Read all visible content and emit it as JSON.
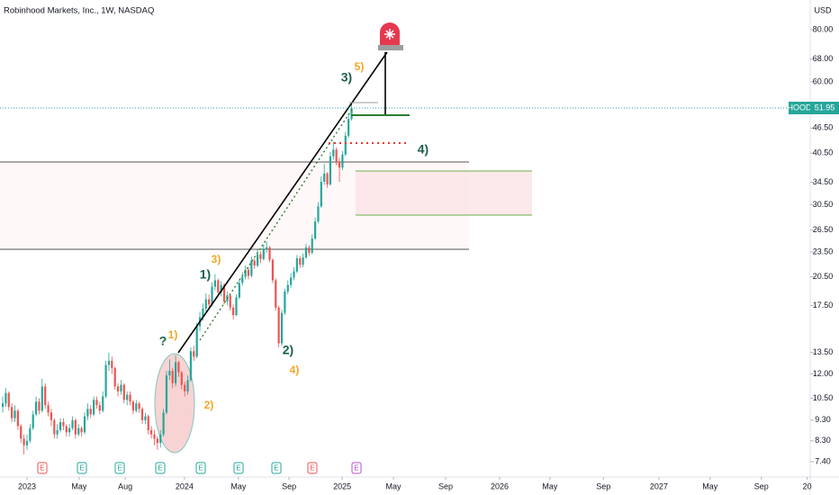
{
  "chart_data": {
    "type": "candlestick",
    "title": "Robinhood Markets, Inc., 1W, NASDAQ",
    "currency": "USD",
    "ticker": "HOOD",
    "last_price": 51.95,
    "log_scale": true,
    "grid": false,
    "up_color": "#26a69a",
    "down_color": "#ef5350",
    "xlim": [
      -0.9,
      266.2
    ],
    "xticks": [
      {
        "value": 8,
        "label": "2023"
      },
      {
        "value": 25.2,
        "label": "May"
      },
      {
        "value": 40.4,
        "label": "Aug"
      },
      {
        "value": 59.9,
        "label": "2024"
      },
      {
        "value": 77.7,
        "label": "May"
      },
      {
        "value": 94.4,
        "label": "Sep"
      },
      {
        "value": 111.9,
        "label": "2025"
      },
      {
        "value": 128.8,
        "label": "May"
      },
      {
        "value": 146,
        "label": "Sep"
      },
      {
        "value": 163.8,
        "label": "2026"
      },
      {
        "value": 180.4,
        "label": "May"
      },
      {
        "value": 198,
        "label": "Sep"
      },
      {
        "value": 216.3,
        "label": "2027"
      },
      {
        "value": 233.2,
        "label": "May"
      },
      {
        "value": 250.1,
        "label": "Sep"
      },
      {
        "value": 265.2,
        "label": "20"
      }
    ],
    "ylim": [
      6.8,
      94.2
    ],
    "yticks": [
      {
        "value": 80,
        "label": "80.00"
      },
      {
        "value": 68,
        "label": "68.00"
      },
      {
        "value": 60,
        "label": "60.00"
      },
      {
        "value": 46.5,
        "label": "46.50"
      },
      {
        "value": 40.5,
        "label": "40.50"
      },
      {
        "value": 34.5,
        "label": "34.50"
      },
      {
        "value": 30.5,
        "label": "30.50"
      },
      {
        "value": 26.5,
        "label": "26.50"
      },
      {
        "value": 23.5,
        "label": "23.50"
      },
      {
        "value": 20.5,
        "label": "20.50"
      },
      {
        "value": 17.5,
        "label": "17.50"
      },
      {
        "value": 13.5,
        "label": "13.50"
      },
      {
        "value": 12,
        "label": "12.00"
      },
      {
        "value": 10.5,
        "label": "10.50"
      },
      {
        "value": 9.3,
        "label": "9.30"
      },
      {
        "value": 8.3,
        "label": "8.30"
      },
      {
        "value": 7.4,
        "label": "7.40"
      }
    ],
    "open": [
      10.0,
      10.2,
      10.8,
      10.0,
      9.4,
      9.8,
      9.0,
      8.4,
      8.1,
      8.3,
      8.9,
      9.6,
      10.3,
      9.8,
      11.2,
      10.1,
      9.7,
      9.3,
      8.6,
      8.8,
      9.2,
      9.0,
      8.7,
      8.9,
      9.3,
      8.6,
      8.9,
      8.7,
      9.5,
      9.9,
      9.6,
      10.4,
      10.1,
      9.8,
      10.6,
      12.6,
      12.9,
      12.4,
      11.2,
      10.9,
      11.3,
      10.4,
      10.7,
      10.3,
      9.8,
      10.2,
      9.9,
      9.3,
      9.5,
      8.8,
      8.6,
      8.4,
      8.2,
      8.6,
      9.7,
      11.9,
      12.2,
      11.4,
      12.8,
      12.1,
      11.3,
      10.9,
      11.6,
      13.6,
      13.2,
      15.6,
      16.4,
      17.2,
      18.1,
      17.6,
      19.4,
      20.1,
      18.8,
      19.6,
      17.9,
      18.5,
      17.3,
      16.6,
      18.3,
      19.8,
      20.5,
      21.3,
      20.6,
      22.4,
      21.8,
      23.2,
      22.6,
      23.8,
      24.1,
      22.5,
      20.1,
      17.3,
      14.2,
      16.8,
      18.9,
      19.6,
      20.4,
      21.1,
      22.7,
      21.9,
      22.8,
      24.1,
      23.4,
      25.3,
      27.8,
      30.2,
      34.6,
      36.2,
      34.1,
      39.8,
      41.3,
      38.7,
      37.4,
      40.2,
      44.6,
      48.9
    ],
    "high": [
      10.6,
      11.1,
      10.9,
      10.2,
      10.1,
      9.9,
      9.1,
      8.6,
      8.6,
      9.1,
      9.8,
      10.6,
      10.5,
      11.7,
      11.4,
      10.3,
      9.9,
      9.4,
      9.1,
      9.4,
      9.4,
      9.1,
      9.1,
      9.5,
      9.4,
      9.1,
      9.0,
      9.7,
      10.2,
      10.1,
      10.6,
      10.6,
      10.3,
      10.9,
      12.9,
      13.5,
      13.2,
      12.5,
      11.4,
      11.6,
      11.4,
      10.9,
      10.9,
      10.4,
      10.4,
      10.3,
      10.0,
      9.7,
      9.6,
      9.0,
      8.8,
      8.5,
      8.8,
      9.9,
      12.2,
      13.0,
      12.4,
      13.3,
      12.9,
      12.2,
      11.5,
      11.9,
      13.9,
      14.0,
      15.9,
      16.9,
      17.7,
      18.7,
      18.6,
      19.9,
      20.8,
      20.3,
      20.0,
      19.8,
      18.9,
      18.7,
      17.6,
      18.6,
      20.2,
      21.0,
      21.8,
      21.6,
      22.9,
      22.7,
      23.8,
      23.6,
      24.5,
      24.9,
      24.3,
      22.7,
      20.3,
      17.5,
      17.1,
      19.2,
      20.1,
      20.9,
      21.6,
      23.1,
      23.0,
      23.3,
      24.6,
      24.4,
      25.9,
      28.4,
      30.9,
      35.6,
      38.2,
      36.5,
      40.8,
      43.2,
      41.8,
      39.5,
      41.0,
      45.5,
      50.1,
      53.2
    ],
    "low": [
      9.7,
      10.0,
      9.8,
      9.2,
      9.2,
      8.8,
      8.2,
      7.7,
      7.9,
      8.2,
      8.8,
      9.5,
      9.6,
      9.7,
      9.9,
      9.5,
      9.0,
      8.4,
      8.4,
      8.7,
      8.8,
      8.5,
      8.5,
      8.8,
      8.4,
      8.5,
      8.5,
      8.6,
      9.3,
      9.4,
      9.5,
      9.9,
      9.6,
      9.7,
      10.5,
      12.2,
      12.0,
      11.0,
      10.6,
      10.7,
      10.2,
      10.1,
      10.1,
      9.6,
      9.7,
      9.7,
      9.1,
      9.1,
      8.6,
      8.4,
      8.1,
      7.9,
      8.0,
      8.5,
      9.6,
      11.6,
      11.1,
      11.2,
      11.8,
      11.0,
      10.6,
      10.7,
      11.5,
      12.9,
      13.1,
      15.2,
      16.1,
      16.9,
      17.2,
      17.4,
      19.0,
      18.5,
      18.4,
      17.6,
      17.5,
      17.0,
      16.2,
      16.5,
      18.1,
      19.5,
      20.2,
      20.2,
      20.4,
      21.4,
      21.6,
      22.1,
      22.4,
      23.4,
      22.2,
      19.8,
      17.0,
      13.9,
      14.0,
      16.6,
      18.6,
      19.3,
      20.1,
      20.9,
      21.5,
      21.6,
      22.6,
      23.0,
      23.2,
      25.1,
      27.5,
      30.0,
      34.0,
      33.5,
      33.9,
      39.1,
      37.9,
      34.6,
      36.9,
      39.8,
      44.0,
      48.5
    ],
    "close": [
      10.2,
      10.8,
      10.0,
      9.4,
      9.8,
      9.0,
      8.4,
      8.1,
      8.3,
      8.9,
      9.6,
      10.3,
      9.8,
      11.2,
      10.1,
      9.7,
      9.3,
      8.6,
      8.8,
      9.2,
      9.0,
      8.7,
      8.9,
      9.3,
      8.6,
      8.9,
      8.7,
      9.5,
      9.9,
      9.6,
      10.4,
      10.1,
      9.8,
      10.6,
      12.6,
      12.9,
      12.4,
      11.2,
      10.9,
      11.3,
      10.4,
      10.7,
      10.3,
      9.8,
      10.2,
      9.9,
      9.3,
      9.5,
      8.8,
      8.6,
      8.4,
      8.2,
      8.6,
      9.7,
      11.9,
      12.2,
      11.4,
      12.8,
      12.1,
      11.3,
      10.9,
      11.6,
      13.6,
      13.2,
      15.6,
      16.4,
      17.2,
      18.1,
      17.6,
      19.4,
      20.1,
      18.8,
      19.6,
      17.9,
      18.5,
      17.3,
      16.6,
      18.3,
      19.8,
      20.5,
      21.3,
      20.6,
      22.4,
      21.8,
      23.2,
      22.6,
      23.8,
      24.1,
      22.5,
      20.1,
      17.3,
      14.2,
      16.8,
      18.9,
      19.6,
      20.4,
      21.1,
      22.7,
      21.9,
      22.8,
      24.1,
      23.4,
      25.3,
      27.8,
      30.2,
      34.6,
      36.2,
      34.1,
      39.8,
      41.3,
      38.7,
      37.4,
      40.2,
      44.6,
      48.9,
      51.95
    ],
    "annotations": [
      {
        "text": "?",
        "color": "#1b5e4b"
      },
      {
        "text": "1)",
        "color": "#f5a623"
      },
      {
        "text": "2)",
        "color": "#f5a623"
      },
      {
        "text": "1)",
        "color": "#1b5e4b"
      },
      {
        "text": "3)",
        "color": "#f5a623"
      },
      {
        "text": "2)",
        "color": "#1b5e4b"
      },
      {
        "text": "4)",
        "color": "#f5a623"
      },
      {
        "text": "3)",
        "color": "#1b5e4b"
      },
      {
        "text": "5)",
        "color": "#f5a623"
      },
      {
        "text": "4)",
        "color": "#1b5e4b"
      }
    ],
    "events": [
      {
        "label": "E",
        "color": "#ef5350"
      },
      {
        "label": "E",
        "color": "#26a69a"
      },
      {
        "label": "E",
        "color": "#26a69a"
      },
      {
        "label": "E",
        "color": "#26a69a"
      },
      {
        "label": "E",
        "color": "#26a69a"
      },
      {
        "label": "E",
        "color": "#26a69a"
      },
      {
        "label": "E",
        "color": "#26a69a"
      },
      {
        "label": "E",
        "color": "#ef5350"
      },
      {
        "label": "E",
        "color": "#b84fd6"
      }
    ]
  }
}
